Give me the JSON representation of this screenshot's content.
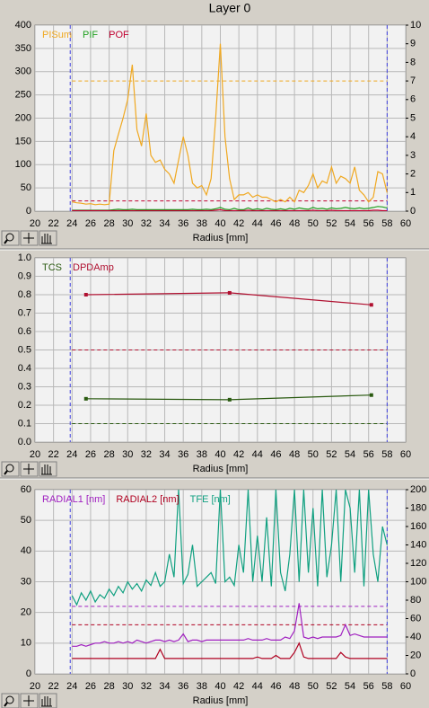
{
  "title": "Layer 0",
  "chart_data": [
    {
      "type": "line",
      "xlabel": "Radius [mm]",
      "xlim": [
        20,
        60
      ],
      "xticks": [
        20,
        22,
        24,
        26,
        28,
        30,
        32,
        34,
        36,
        38,
        40,
        42,
        44,
        46,
        48,
        50,
        52,
        54,
        56,
        58,
        60
      ],
      "ylim": [
        0,
        400
      ],
      "yticks": [
        0,
        50,
        100,
        150,
        200,
        250,
        300,
        350,
        400
      ],
      "y2lim": [
        0,
        10
      ],
      "y2ticks": [
        0,
        1,
        2,
        3,
        4,
        5,
        6,
        7,
        8,
        9,
        10
      ],
      "grid": true,
      "x": [
        24,
        24.5,
        25,
        25.5,
        26,
        26.5,
        27,
        27.5,
        28,
        28.5,
        29,
        29.5,
        30,
        30.5,
        31,
        31.5,
        32,
        32.5,
        33,
        33.5,
        34,
        34.5,
        35,
        35.5,
        36,
        36.5,
        37,
        37.5,
        38,
        38.5,
        39,
        39.5,
        40,
        40.5,
        41,
        41.5,
        42,
        42.5,
        43,
        43.5,
        44,
        44.5,
        45,
        45.5,
        46,
        46.5,
        47,
        47.5,
        48,
        48.5,
        49,
        49.5,
        50,
        50.5,
        51,
        51.5,
        52,
        52.5,
        53,
        53.5,
        54,
        54.5,
        55,
        55.5,
        56,
        56.5,
        57,
        57.5,
        58
      ],
      "series": [
        {
          "name": "PISum",
          "color": "#f0a820",
          "values": [
            20,
            18,
            17,
            15,
            16,
            14,
            15,
            14,
            15,
            130,
            165,
            200,
            240,
            315,
            175,
            140,
            210,
            120,
            105,
            110,
            90,
            80,
            60,
            110,
            160,
            120,
            60,
            50,
            55,
            35,
            70,
            200,
            360,
            160,
            70,
            25,
            35,
            35,
            40,
            30,
            35,
            30,
            30,
            25,
            20,
            25,
            20,
            30,
            20,
            45,
            40,
            55,
            80,
            50,
            65,
            60,
            95,
            60,
            75,
            70,
            60,
            95,
            45,
            35,
            20,
            30,
            85,
            80,
            40
          ]
        },
        {
          "name": "PIF",
          "color": "#20a020",
          "values": [
            2,
            2,
            2,
            2,
            2,
            2,
            2,
            2,
            2,
            3,
            4,
            3,
            3,
            4,
            3,
            3,
            3,
            3,
            3,
            3,
            3,
            3,
            3,
            3,
            3,
            3,
            4,
            3,
            3,
            4,
            3,
            5,
            8,
            4,
            3,
            6,
            3,
            3,
            7,
            3,
            5,
            3,
            6,
            4,
            3,
            5,
            3,
            6,
            4,
            7,
            5,
            4,
            8,
            5,
            6,
            4,
            7,
            5,
            6,
            8,
            6,
            5,
            7,
            5,
            6,
            8,
            10,
            9,
            7
          ]
        },
        {
          "name": "POF",
          "color": "#c00030",
          "values": [
            1,
            1,
            1,
            1,
            1,
            1,
            1,
            1,
            1,
            1,
            1,
            1,
            1,
            1,
            1,
            1,
            1,
            1,
            1,
            1,
            1,
            1,
            1,
            1,
            1,
            1,
            1,
            1,
            1,
            1,
            1,
            2,
            3,
            1,
            1,
            1,
            1,
            1,
            2,
            1,
            1,
            1,
            1,
            1,
            1,
            1,
            1,
            1,
            1,
            1,
            1,
            1,
            2,
            1,
            1,
            1,
            2,
            1,
            1,
            1,
            1,
            1,
            1,
            1,
            1,
            2,
            2,
            1,
            1
          ]
        }
      ],
      "hlines": [
        {
          "value": 280,
          "color": "#f0a820"
        },
        {
          "value": 22,
          "color": "#c00030"
        }
      ],
      "vlines": [
        {
          "value": 23.8,
          "color": "#4040e0"
        },
        {
          "value": 58,
          "color": "#4040e0"
        }
      ]
    },
    {
      "type": "line",
      "xlabel": "Radius [mm]",
      "xlim": [
        20,
        60
      ],
      "xticks": [
        20,
        22,
        24,
        26,
        28,
        30,
        32,
        34,
        36,
        38,
        40,
        42,
        44,
        46,
        48,
        50,
        52,
        54,
        56,
        58,
        60
      ],
      "ylim": [
        0,
        1
      ],
      "yticks": [
        {
          "value": 0,
          "label": "0.0"
        },
        0.1,
        0.2,
        0.3,
        0.4,
        0.5,
        0.6,
        0.7,
        0.8,
        0.9,
        {
          "value": 1,
          "label": "1.0"
        }
      ],
      "grid": true,
      "series": [
        {
          "name": "TCS",
          "color": "#2a5a10",
          "markers": true,
          "x": [
            25.5,
            41,
            56.3
          ],
          "values": [
            0.235,
            0.23,
            0.255
          ]
        },
        {
          "name": "DPDAmp",
          "color": "#b01030",
          "markers": true,
          "x": [
            25.5,
            41,
            56.3
          ],
          "values": [
            0.8,
            0.81,
            0.745
          ]
        }
      ],
      "hlines": [
        {
          "value": 0.5,
          "color": "#b01030"
        },
        {
          "value": 0.1,
          "color": "#2a5a10"
        }
      ],
      "vlines": [
        {
          "value": 23.8,
          "color": "#4040e0"
        },
        {
          "value": 58,
          "color": "#4040e0"
        }
      ]
    },
    {
      "type": "line",
      "xlabel": "Radius [mm]",
      "xlim": [
        20,
        60
      ],
      "xticks": [
        20,
        22,
        24,
        26,
        28,
        30,
        32,
        34,
        36,
        38,
        40,
        42,
        44,
        46,
        48,
        50,
        52,
        54,
        56,
        58,
        60
      ],
      "ylim": [
        0,
        60
      ],
      "yticks": [
        0,
        10,
        20,
        30,
        40,
        50,
        60
      ],
      "y2lim": [
        0,
        200
      ],
      "y2ticks": [
        0,
        20,
        40,
        60,
        80,
        100,
        120,
        140,
        160,
        180,
        200
      ],
      "grid": true,
      "x": [
        24,
        24.5,
        25,
        25.5,
        26,
        26.5,
        27,
        27.5,
        28,
        28.5,
        29,
        29.5,
        30,
        30.5,
        31,
        31.5,
        32,
        32.5,
        33,
        33.5,
        34,
        34.5,
        35,
        35.5,
        36,
        36.5,
        37,
        37.5,
        38,
        38.5,
        39,
        39.5,
        40,
        40.5,
        41,
        41.5,
        42,
        42.5,
        43,
        43.5,
        44,
        44.5,
        45,
        45.5,
        46,
        46.5,
        47,
        47.5,
        48,
        48.5,
        49,
        49.5,
        50,
        50.5,
        51,
        51.5,
        52,
        52.5,
        53,
        53.5,
        54,
        54.5,
        55,
        55.5,
        56,
        56.5,
        57,
        57.5,
        58
      ],
      "series": [
        {
          "name": "RADIAL1 [nm]",
          "color": "#a020c0",
          "values": [
            9,
            9,
            9.5,
            9,
            9.5,
            10,
            10,
            10.5,
            10,
            10,
            10.5,
            10,
            10.5,
            10,
            11,
            10.5,
            10,
            10.5,
            11,
            11,
            10.5,
            11,
            10.5,
            11,
            13,
            10.5,
            11,
            11,
            10.5,
            11,
            11,
            11,
            11,
            11,
            11,
            11,
            11,
            11,
            11.5,
            11,
            11,
            11,
            11.5,
            11,
            11,
            11,
            12,
            11.5,
            14,
            23,
            12,
            11.5,
            12,
            11.5,
            12,
            12,
            12,
            12,
            12.5,
            16,
            12.5,
            13,
            12.5,
            12,
            12,
            12,
            12,
            12,
            12
          ]
        },
        {
          "name": "RADIAL2 [nm]",
          "color": "#b00020",
          "values": [
            5,
            5,
            5,
            5,
            5,
            5,
            5,
            5,
            5,
            5,
            5,
            5,
            5,
            5,
            5,
            5,
            5,
            5,
            5,
            8,
            5,
            5,
            5,
            5,
            5,
            5,
            5,
            5,
            5,
            5,
            5,
            5,
            5,
            5,
            5,
            5,
            5,
            5,
            5,
            5,
            5.5,
            5,
            5,
            5,
            6,
            5,
            5,
            5,
            7,
            10,
            5.5,
            5,
            5,
            5,
            5,
            5,
            5,
            5,
            7,
            5.5,
            5,
            5,
            5,
            5,
            5,
            5,
            5,
            5,
            5
          ]
        },
        {
          "name": "TFE [nm]",
          "color": "#10a080",
          "axis": "y2",
          "values": [
            85,
            75,
            88,
            80,
            90,
            78,
            86,
            82,
            92,
            85,
            95,
            88,
            100,
            92,
            98,
            90,
            102,
            96,
            110,
            95,
            100,
            130,
            105,
            200,
            98,
            108,
            140,
            95,
            100,
            105,
            110,
            98,
            200,
            100,
            105,
            96,
            140,
            110,
            200,
            100,
            150,
            100,
            170,
            95,
            200,
            110,
            90,
            130,
            200,
            100,
            200,
            110,
            180,
            95,
            200,
            105,
            140,
            200,
            100,
            200,
            180,
            110,
            200,
            95,
            200,
            130,
            100,
            160,
            140
          ]
        }
      ],
      "hlines": [
        {
          "value": 22,
          "color": "#a020c0"
        },
        {
          "value": 16,
          "color": "#b00020"
        }
      ],
      "vlines": [
        {
          "value": 23.8,
          "color": "#4040e0"
        },
        {
          "value": 58,
          "color": "#4040e0"
        }
      ]
    }
  ]
}
